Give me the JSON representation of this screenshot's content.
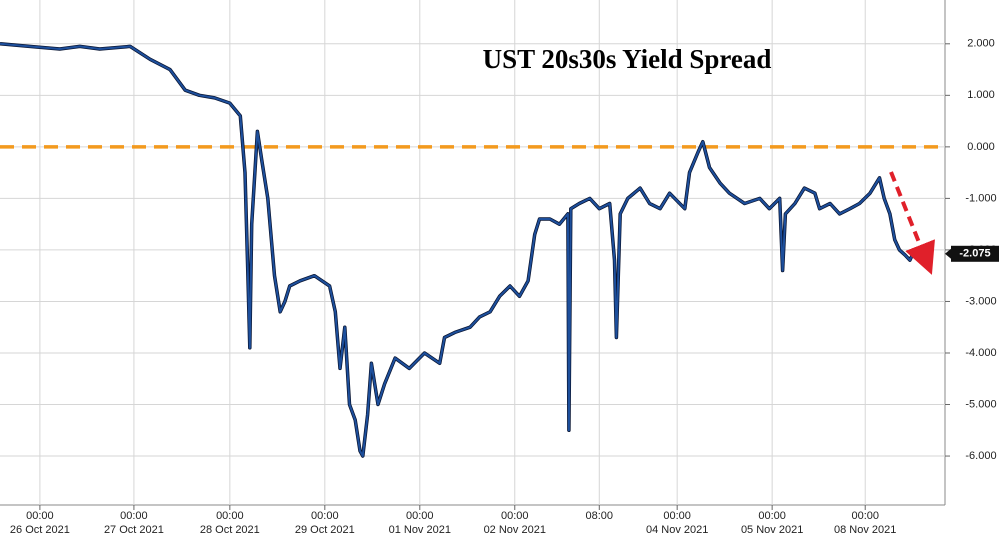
{
  "chart_data": {
    "type": "line",
    "title": "UST 20s30s Yield Spread",
    "x": [
      -0.42,
      -0.11,
      0.21,
      0.42,
      0.63,
      0.95,
      1.16,
      1.37,
      1.53,
      1.68,
      1.84,
      2.0,
      2.11,
      2.16,
      2.19,
      2.21,
      2.23,
      2.29,
      2.34,
      2.4,
      2.47,
      2.53,
      2.58,
      2.63,
      2.74,
      2.89,
      3.05,
      3.11,
      3.16,
      3.21,
      3.26,
      3.32,
      3.37,
      3.4,
      3.45,
      3.49,
      3.56,
      3.63,
      3.74,
      3.89,
      4.05,
      4.21,
      4.26,
      4.37,
      4.53,
      4.63,
      4.74,
      4.84,
      4.95,
      5.05,
      5.14,
      5.21,
      5.26,
      5.37,
      5.47,
      5.56,
      5.57,
      5.59,
      5.68,
      5.79,
      5.89,
      6.0,
      6.05,
      6.07,
      6.11,
      6.19,
      6.32,
      6.42,
      6.53,
      6.63,
      6.79,
      6.84,
      6.93,
      6.98,
      7.05,
      7.16,
      7.26,
      7.42,
      7.58,
      7.68,
      7.79,
      7.82,
      7.85,
      7.95,
      8.05,
      8.16,
      8.21,
      8.32,
      8.42,
      8.53,
      8.63,
      8.74,
      8.84,
      8.89,
      8.95,
      9.0,
      9.05,
      9.11,
      9.16,
      9.21,
      9.26
    ],
    "series": [
      {
        "color": "#1d4f9c",
        "values": [
          2.0,
          1.95,
          1.9,
          1.95,
          1.9,
          1.95,
          1.7,
          1.5,
          1.1,
          1.0,
          0.95,
          0.85,
          0.6,
          -0.5,
          -2.5,
          -3.9,
          -1.5,
          0.3,
          -0.3,
          -1.0,
          -2.5,
          -3.2,
          -3.0,
          -2.7,
          -2.6,
          -2.5,
          -2.7,
          -3.2,
          -4.3,
          -3.5,
          -5.0,
          -5.3,
          -5.9,
          -6.0,
          -5.2,
          -4.2,
          -5.0,
          -4.6,
          -4.1,
          -4.3,
          -4.0,
          -4.2,
          -3.7,
          -3.6,
          -3.5,
          -3.3,
          -3.2,
          -2.9,
          -2.7,
          -2.9,
          -2.6,
          -1.7,
          -1.4,
          -1.4,
          -1.5,
          -1.3,
          -5.5,
          -1.2,
          -1.1,
          -1.0,
          -1.2,
          -1.1,
          -2.2,
          -3.7,
          -1.3,
          -1.0,
          -0.8,
          -1.1,
          -1.2,
          -0.9,
          -1.2,
          -0.5,
          -0.1,
          0.1,
          -0.4,
          -0.7,
          -0.9,
          -1.1,
          -1.0,
          -1.2,
          -1.0,
          -2.4,
          -1.3,
          -1.1,
          -0.8,
          -0.9,
          -1.2,
          -1.1,
          -1.3,
          -1.2,
          -1.1,
          -0.9,
          -0.6,
          -1.0,
          -1.3,
          -1.8,
          -2.0,
          -2.1,
          -2.2,
          -2.0,
          -2.075
        ]
      }
    ],
    "xlim": [
      -0.42,
      9.53
    ],
    "xticks": [
      {
        "value": 0,
        "label": "00:00"
      },
      {
        "value": 0.99,
        "label": "00:00"
      },
      {
        "value": 2,
        "label": "00:00"
      },
      {
        "value": 3,
        "label": "00:00"
      },
      {
        "value": 4,
        "label": "00:00"
      },
      {
        "value": 5,
        "label": "00:00"
      },
      {
        "value": 5.89,
        "label": "08:00"
      },
      {
        "value": 6.71,
        "label": "00:00"
      },
      {
        "value": 7.71,
        "label": "00:00"
      },
      {
        "value": 8.69,
        "label": "00:00"
      }
    ],
    "xtick_dates": [
      "26 Oct 2021",
      "27 Oct 2021",
      "28 Oct 2021",
      "29 Oct 2021",
      "01 Nov 2021",
      "02 Nov 2021",
      null,
      "04 Nov 2021",
      "05 Nov 2021",
      "08 Nov 2021"
    ],
    "ylim": [
      -6.95,
      2.85
    ],
    "yticks": [
      {
        "value": 2,
        "label": "2.000"
      },
      {
        "value": 1,
        "label": "1.000"
      },
      {
        "value": 0,
        "label": "0.000"
      },
      {
        "value": -1,
        "label": "-1.000"
      },
      {
        "value": -2,
        "label": "-2.000"
      },
      {
        "value": -3,
        "label": "-3.000"
      },
      {
        "value": -4,
        "label": "-4.000"
      },
      {
        "value": -5,
        "label": "-5.000"
      },
      {
        "value": -6,
        "label": "-6.000"
      }
    ],
    "grid": true,
    "reference_line": {
      "value": 0,
      "color": "#f39a1e"
    },
    "last_label": {
      "value": -2.075,
      "label": "-2.075"
    }
  }
}
